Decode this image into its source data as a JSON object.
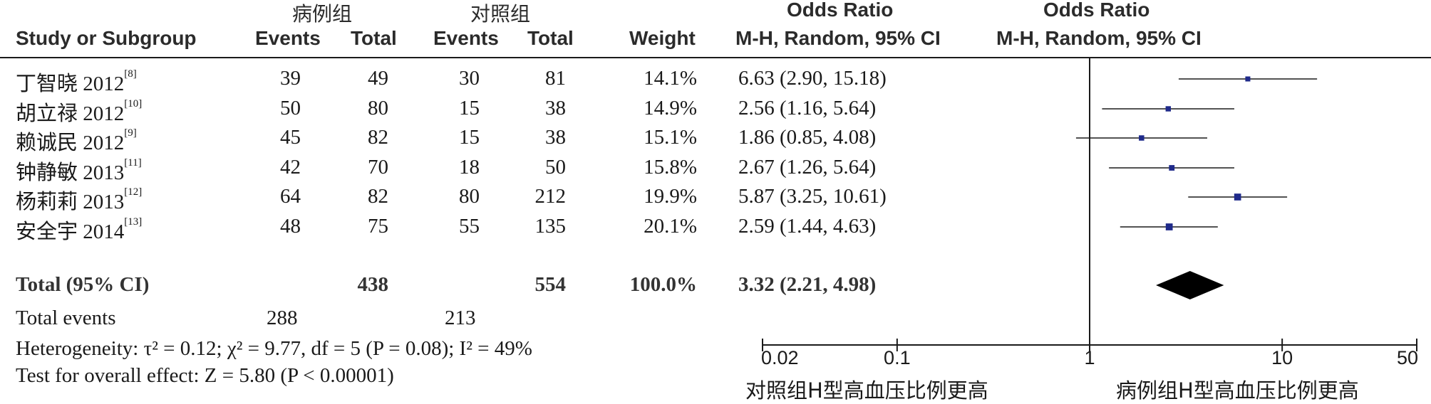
{
  "header": {
    "study_col": "Study or Subgroup",
    "case_group": "病例组",
    "control_group": "对照组",
    "events_label": "Events",
    "total_label": "Total",
    "weight_label": "Weight",
    "or_title": "Odds Ratio",
    "or_method": "M-H, Random, 95% CI"
  },
  "studies": [
    {
      "name": "丁智晓 2012",
      "ref": "[8]",
      "case_events": "39",
      "case_total": "49",
      "ctrl_events": "30",
      "ctrl_total": "81",
      "weight": "14.1%",
      "ci_text": "6.63 (2.90, 15.18)"
    },
    {
      "name": "胡立禄 2012",
      "ref": "[10]",
      "case_events": "50",
      "case_total": "80",
      "ctrl_events": "15",
      "ctrl_total": "38",
      "weight": "14.9%",
      "ci_text": "2.56 (1.16, 5.64)"
    },
    {
      "name": "赖诚民 2012",
      "ref": "[9]",
      "case_events": "45",
      "case_total": "82",
      "ctrl_events": "15",
      "ctrl_total": "38",
      "weight": "15.1%",
      "ci_text": "1.86 (0.85, 4.08)"
    },
    {
      "name": "钟静敏 2013",
      "ref": "[11]",
      "case_events": "42",
      "case_total": "70",
      "ctrl_events": "18",
      "ctrl_total": "50",
      "weight": "15.8%",
      "ci_text": "2.67 (1.26, 5.64)"
    },
    {
      "name": "杨莉莉 2013",
      "ref": "[12]",
      "case_events": "64",
      "case_total": "82",
      "ctrl_events": "80",
      "ctrl_total": "212",
      "weight": "19.9%",
      "ci_text": "5.87 (3.25, 10.61)"
    },
    {
      "name": "安全宇 2014",
      "ref": "[13]",
      "case_events": "48",
      "case_total": "75",
      "ctrl_events": "55",
      "ctrl_total": "135",
      "weight": "20.1%",
      "ci_text": "2.59 (1.44, 4.63)"
    }
  ],
  "total": {
    "label": "Total (95% CI)",
    "case_total": "438",
    "ctrl_total": "554",
    "weight": "100.0%",
    "ci_text": "3.32 (2.21, 4.98)"
  },
  "total_events": {
    "label": "Total events",
    "case": "288",
    "ctrl": "213"
  },
  "heterogeneity": "Heterogeneity: τ² = 0.12; χ² = 9.77, df = 5 (P = 0.08); I² = 49%",
  "overall_effect": "Test for overall effect: Z = 5.80 (P < 0.00001)",
  "axis": {
    "left_caption": "对照组H型高血压比例更高",
    "right_caption": "病例组H型高血压比例更高"
  },
  "colors": {
    "marker": "#1f2a8a",
    "diamond": "#000000",
    "line": "#1a1a1a"
  },
  "chart_data": {
    "type": "forest",
    "scale": "log",
    "xlim": [
      0.02,
      50
    ],
    "null_line": 1,
    "xticks": [
      0.02,
      0.1,
      1,
      10,
      50
    ],
    "xtick_labels": [
      "0.02",
      "0.1",
      "1",
      "10",
      "50"
    ],
    "studies": [
      {
        "or": 6.63,
        "lo": 2.9,
        "hi": 15.18,
        "weight": 14.1
      },
      {
        "or": 2.56,
        "lo": 1.16,
        "hi": 5.64,
        "weight": 14.9
      },
      {
        "or": 1.86,
        "lo": 0.85,
        "hi": 4.08,
        "weight": 15.1
      },
      {
        "or": 2.67,
        "lo": 1.26,
        "hi": 5.64,
        "weight": 15.8
      },
      {
        "or": 5.87,
        "lo": 3.25,
        "hi": 10.61,
        "weight": 19.9
      },
      {
        "or": 2.59,
        "lo": 1.44,
        "hi": 4.63,
        "weight": 20.1
      }
    ],
    "pooled": {
      "or": 3.32,
      "lo": 2.21,
      "hi": 4.98
    }
  }
}
